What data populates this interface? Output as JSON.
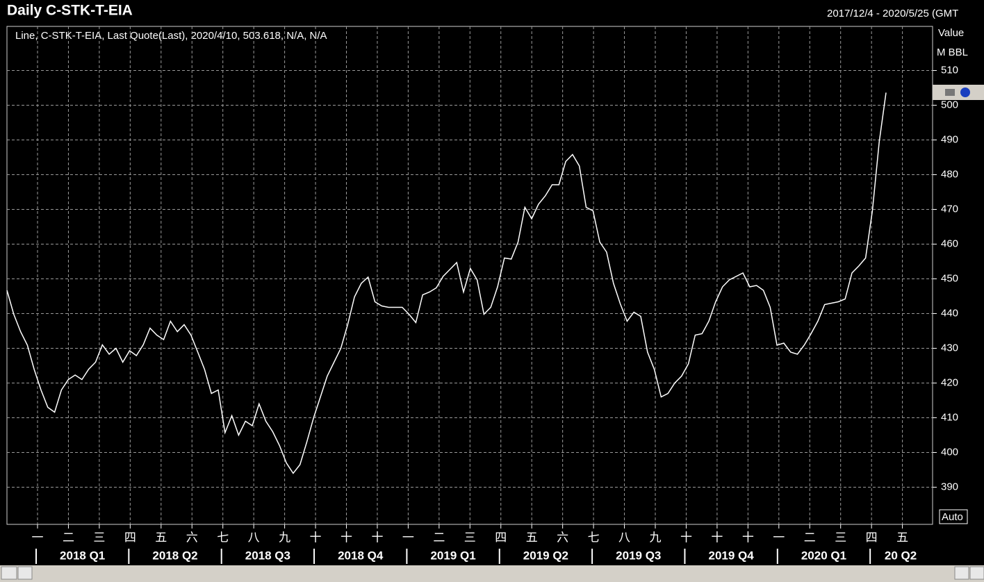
{
  "chart_data": {
    "type": "line",
    "title": "Daily C-STK-T-EIA",
    "date_range": "2017/12/4 - 2020/5/25 (GMT",
    "legend_text": "Line, C-STK-T-EIA, Last Quote(Last), 2020/4/10, 503.618, N/A, N/A",
    "axis_label": "Value",
    "unit_label": "M BBL",
    "auto_button": "Auto",
    "months": [
      "一",
      "二",
      "三",
      "四",
      "五",
      "六",
      "七",
      "八",
      "九",
      "十",
      "十",
      "十",
      "一",
      "二",
      "三",
      "四",
      "五",
      "六",
      "七",
      "八",
      "九",
      "十",
      "十",
      "十",
      "一",
      "二",
      "三",
      "四",
      "五"
    ],
    "quarters": [
      "2018 Q1",
      "2018 Q2",
      "2018 Q3",
      "2018 Q4",
      "2019 Q1",
      "2019 Q2",
      "2019 Q3",
      "2019 Q4",
      "2020 Q1",
      "20 Q2"
    ],
    "series": [
      {
        "name": "C-STK-T-EIA",
        "color": "#ffffff",
        "values": [
          446.7,
          439.8,
          434.8,
          430.9,
          423.9,
          418,
          413,
          411.6,
          418,
          421,
          422.3,
          421,
          424,
          426,
          431,
          428.3,
          430,
          426,
          429.3,
          427.9,
          431,
          435.8,
          433.8,
          432.5,
          437.8,
          434.8,
          436.8,
          433.8,
          428.9,
          423.9,
          417,
          418,
          405.7,
          410.6,
          405,
          409,
          407.7,
          414,
          409,
          406,
          402,
          397,
          394,
          396.5,
          403,
          410,
          416,
          422,
          426,
          430,
          436.8,
          444.8,
          448.7,
          450.5,
          443.4,
          442.2,
          441.8,
          441.8,
          441.8,
          439.8,
          437.4,
          445.4,
          446.2,
          447.4,
          450.7,
          452.7,
          454.7,
          446.2,
          453,
          449.7,
          439.8,
          441.8,
          447.7,
          456,
          455.7,
          460.6,
          470.6,
          467.3,
          471.5,
          473.9,
          477.1,
          477.1,
          483.8,
          485.8,
          482.5,
          470.6,
          469.6,
          460.6,
          457.7,
          448.7,
          442.8,
          437.8,
          440.4,
          439.2,
          428.9,
          423.9,
          416,
          417,
          420,
          422,
          425.5,
          433.8,
          434.2,
          437.8,
          443.4,
          447.7,
          449.7,
          450.7,
          451.7,
          447.7,
          448.1,
          446.7,
          441.8,
          430.9,
          431.5,
          428.9,
          428.3,
          430.9,
          434.2,
          437.8,
          442.6,
          443,
          443.4,
          444.2,
          451.7,
          453.7,
          456,
          469.6,
          489.4,
          503.618
        ]
      }
    ],
    "ylim": [
      379.3,
      522.7
    ],
    "yticks": [
      390,
      400,
      410,
      420,
      430,
      440,
      450,
      460,
      470,
      480,
      490,
      500,
      510
    ],
    "grid": true
  }
}
